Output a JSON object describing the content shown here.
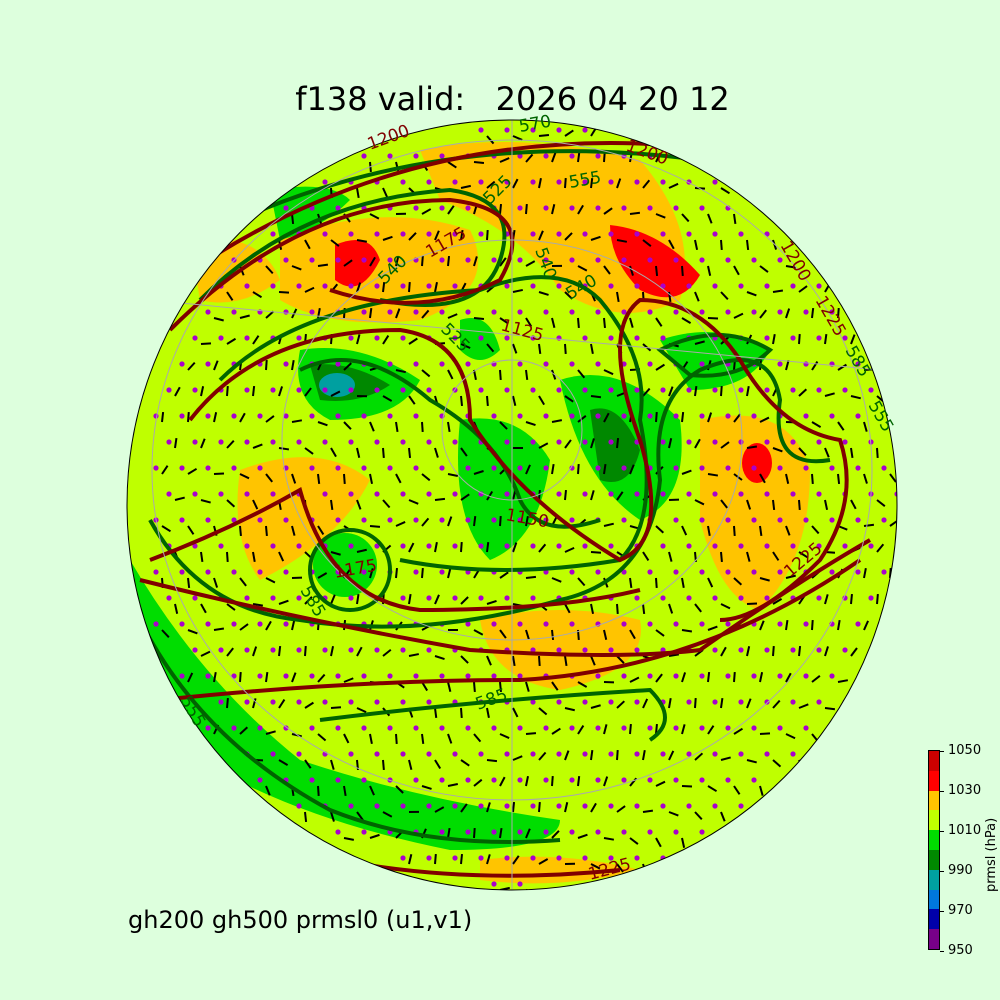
{
  "title": "f138 valid:   2026 04 20 12",
  "subtitle": "gh200 gh500 prmsl0 (u1,v1)",
  "colorbar": {
    "label": "prmsl (hPa)",
    "ticks": [
      "1050",
      "1030",
      "1010",
      "990",
      "970",
      "950"
    ],
    "bands": [
      {
        "range": "1040-1050",
        "color": "#cc0000"
      },
      {
        "range": "1030-1040",
        "color": "#ff0000"
      },
      {
        "range": "1020-1030",
        "color": "#ffc400"
      },
      {
        "range": "1010-1020",
        "color": "#bfff00"
      },
      {
        "range": "1000-1010",
        "color": "#00dd00"
      },
      {
        "range": "990-1000",
        "color": "#008800"
      },
      {
        "range": "980-990",
        "color": "#00a0a0"
      },
      {
        "range": "970-980",
        "color": "#0077dd"
      },
      {
        "range": "960-970",
        "color": "#0000aa"
      },
      {
        "range": "950-960",
        "color": "#770088"
      }
    ]
  },
  "map": {
    "projection": "orthographic",
    "gh200_color": "#800000",
    "gh500_color": "#006400",
    "wind_marker_color": "#aa00cc",
    "contour_labels": {
      "gh200": [
        "1200",
        "1200",
        "1175",
        "1125",
        "1150",
        "1175",
        "1200",
        "1225",
        "1225",
        "1225"
      ],
      "gh500": [
        "570",
        "555",
        "525",
        "540",
        "540",
        "540",
        "525",
        "555",
        "585",
        "585",
        "555",
        "585"
      ]
    }
  }
}
